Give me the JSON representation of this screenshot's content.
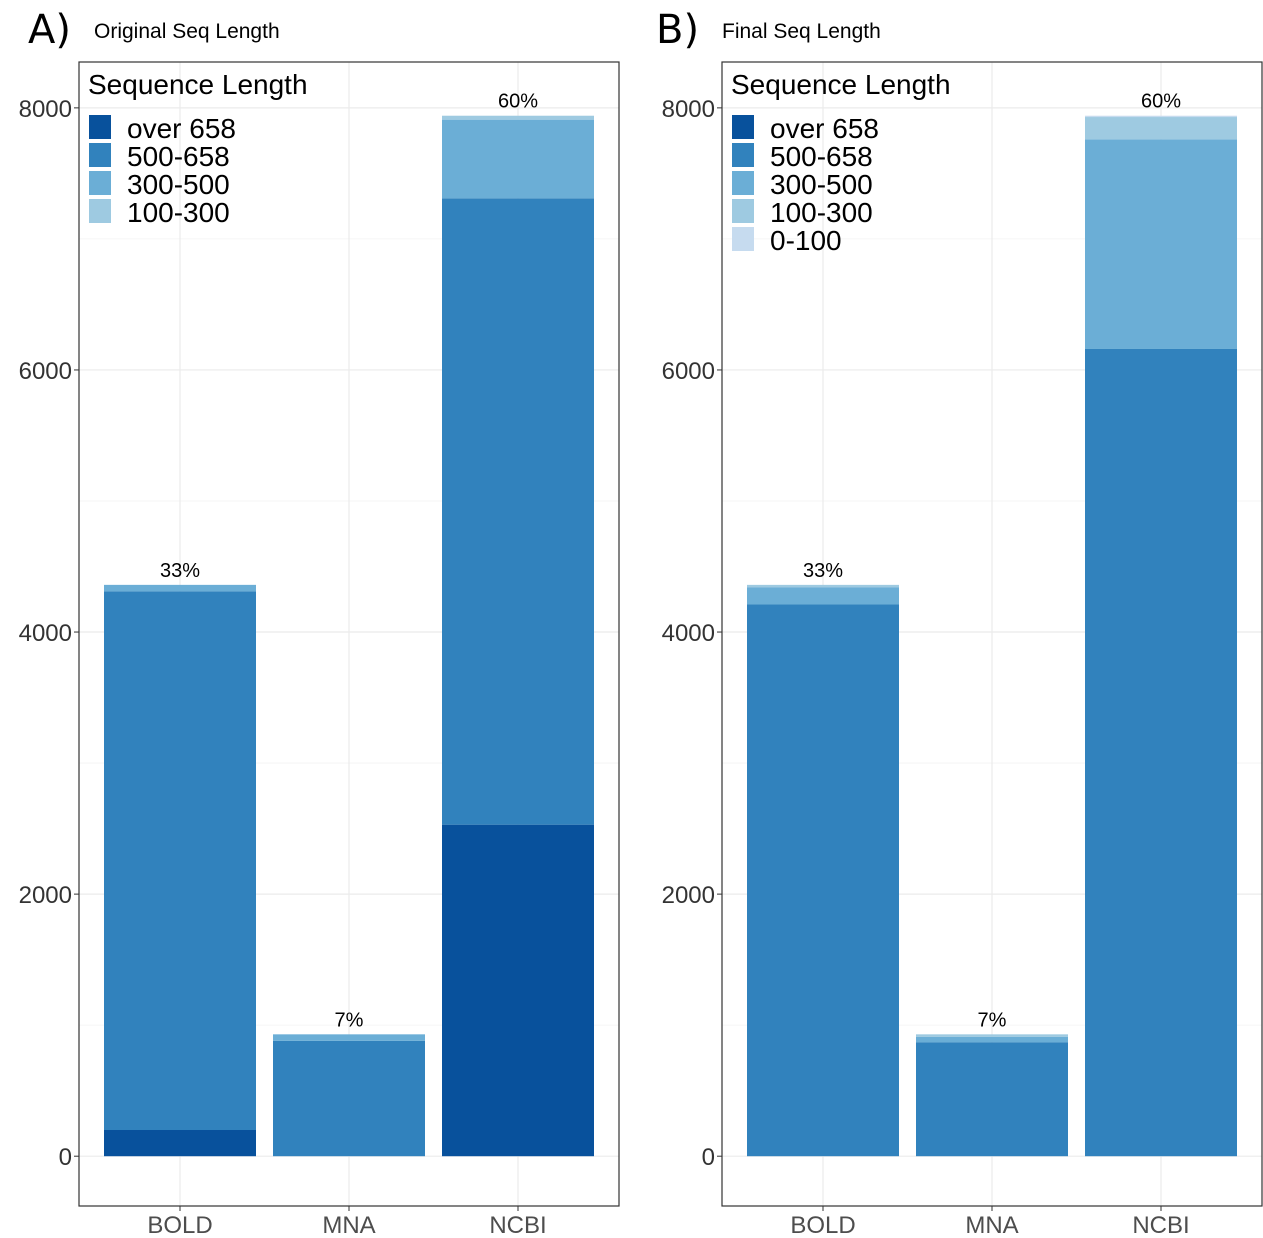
{
  "chart_data": [
    {
      "type": "bar",
      "stacked": true,
      "panel_label": "A)",
      "title": "Original Seq Length",
      "categories": [
        "BOLD",
        "MNA",
        "NCBI"
      ],
      "ylim": [
        -380,
        8350
      ],
      "yticks": [
        0,
        2000,
        4000,
        6000,
        8000
      ],
      "grid": true,
      "legend_title": "Sequence Length",
      "legend_position": "top-left",
      "series": [
        {
          "name": "over 658",
          "color": "#08519c",
          "values": [
            200,
            0,
            2530
          ]
        },
        {
          "name": "500-658",
          "color": "#3182bd",
          "values": [
            4110,
            880,
            4780
          ]
        },
        {
          "name": "300-500",
          "color": "#6baed6",
          "values": [
            50,
            50,
            600
          ]
        },
        {
          "name": "100-300",
          "color": "#9ecae1",
          "values": [
            0,
            0,
            30
          ]
        }
      ],
      "bar_labels": [
        "33%",
        "7%",
        "60%"
      ]
    },
    {
      "type": "bar",
      "stacked": true,
      "panel_label": "B)",
      "title": "Final Seq Length",
      "categories": [
        "BOLD",
        "MNA",
        "NCBI"
      ],
      "ylim": [
        -380,
        8350
      ],
      "yticks": [
        0,
        2000,
        4000,
        6000,
        8000
      ],
      "grid": true,
      "legend_title": "Sequence Length",
      "legend_position": "top-left",
      "series": [
        {
          "name": "over 658",
          "color": "#08519c",
          "values": [
            0,
            0,
            0
          ]
        },
        {
          "name": "500-658",
          "color": "#3182bd",
          "values": [
            4210,
            870,
            6160
          ]
        },
        {
          "name": "300-500",
          "color": "#6baed6",
          "values": [
            130,
            40,
            1600
          ]
        },
        {
          "name": "100-300",
          "color": "#9ecae1",
          "values": [
            20,
            20,
            170
          ]
        },
        {
          "name": "0-100",
          "color": "#c6dbef",
          "values": [
            0,
            0,
            10
          ]
        }
      ],
      "bar_labels": [
        "33%",
        "7%",
        "60%"
      ]
    }
  ]
}
